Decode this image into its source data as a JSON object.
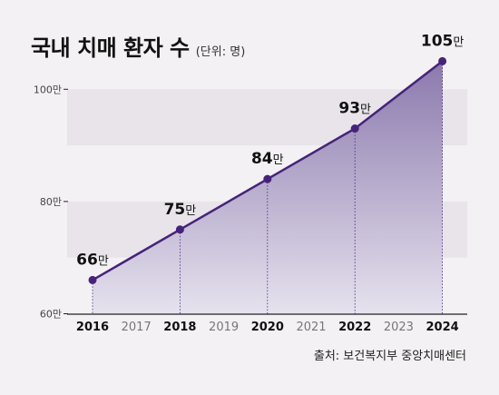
{
  "title": "국내 치매 환자 수",
  "unit_note": "(단위: 명)",
  "source": "출처: 보건복지부 중앙치매센터",
  "colors": {
    "background": "#f3f1f3",
    "band": "#e8e4ea",
    "line": "#46237a",
    "marker": "#46237a",
    "area_top": "#8b79ad",
    "area_bottom": "#e6e2ee",
    "axis": "#222222",
    "text": "#111111",
    "minor_year": "#777777"
  },
  "chart_data": {
    "type": "area",
    "title": "국내 치매 환자 수",
    "subtitle": "(단위: 명)",
    "x": [
      "2016",
      "2017",
      "2018",
      "2019",
      "2020",
      "2021",
      "2022",
      "2023",
      "2024"
    ],
    "x_marked": [
      "2016",
      "2018",
      "2020",
      "2022",
      "2024"
    ],
    "points": [
      {
        "x": "2016",
        "y": 66,
        "label": "66만"
      },
      {
        "x": "2018",
        "y": 75,
        "label": "75만"
      },
      {
        "x": "2020",
        "y": 84,
        "label": "84만"
      },
      {
        "x": "2022",
        "y": 93,
        "label": "93만"
      },
      {
        "x": "2024",
        "y": 105,
        "label": "105만"
      }
    ],
    "y_unit": "만",
    "y_ticks": [
      {
        "value": 60,
        "label": "60만"
      },
      {
        "value": 80,
        "label": "80만"
      },
      {
        "value": 100,
        "label": "100만"
      }
    ],
    "ylim": [
      60,
      107
    ],
    "bands": [
      [
        70,
        80
      ],
      [
        90,
        100
      ]
    ],
    "grid": false,
    "legend": "none"
  }
}
